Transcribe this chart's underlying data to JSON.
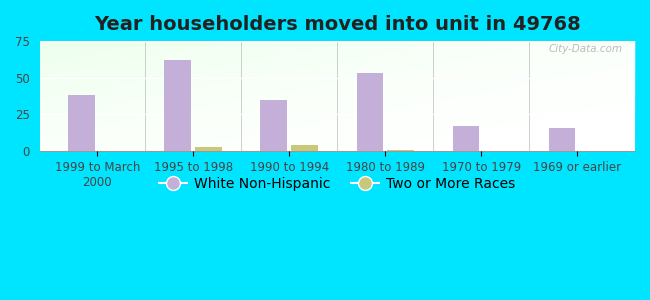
{
  "title": "Year householders moved into unit in 49768",
  "categories": [
    "1999 to March\n2000",
    "1995 to 1998",
    "1990 to 1994",
    "1980 to 1989",
    "1970 to 1979",
    "1969 or earlier"
  ],
  "white_non_hispanic": [
    38,
    62,
    35,
    53,
    17,
    16
  ],
  "two_or_more_races": [
    0,
    3,
    4,
    1,
    0,
    0
  ],
  "bar_color_white": "#c4afd8",
  "bar_color_two": "#c8c87a",
  "background_outer": "#00e5ff",
  "ylim": [
    0,
    75
  ],
  "yticks": [
    0,
    25,
    50,
    75
  ],
  "bar_width": 0.28,
  "bar_gap": 0.04,
  "legend_labels": [
    "White Non-Hispanic",
    "Two or More Races"
  ],
  "title_fontsize": 14,
  "tick_fontsize": 8.5,
  "legend_fontsize": 10
}
